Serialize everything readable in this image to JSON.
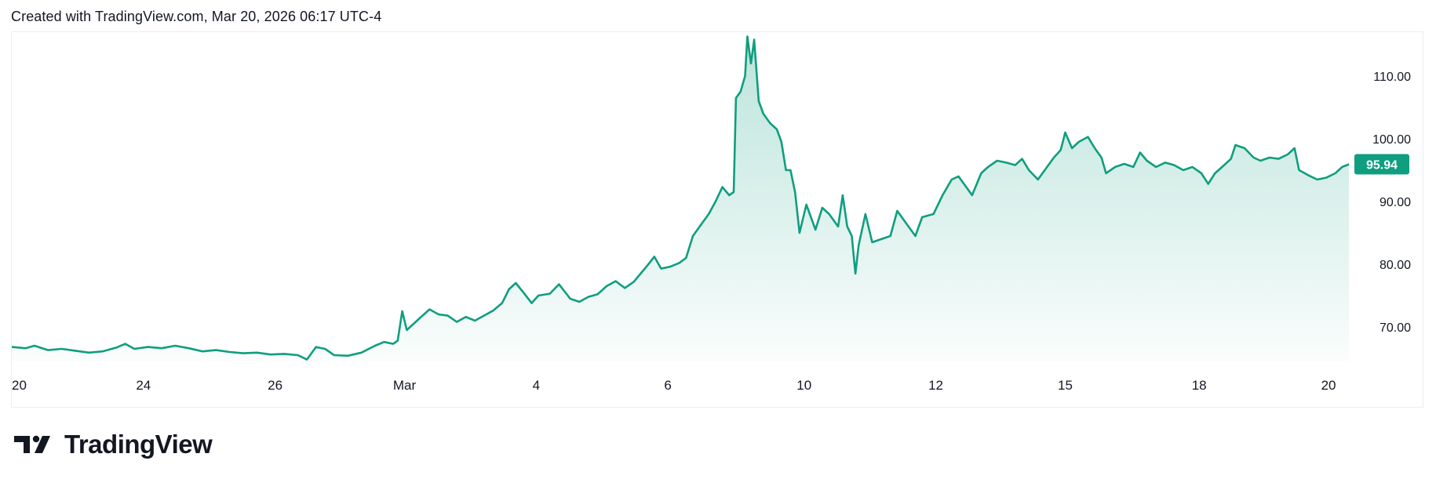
{
  "header": {
    "created_text": "Created with TradingView.com, Mar 20, 2026 06:17 UTC-4"
  },
  "brand": {
    "name": "TradingView",
    "logo_icon": "tradingview-logo-icon"
  },
  "colors": {
    "line": "#0f9e7f",
    "area_top": "#0f9e7f",
    "price_badge_bg": "#0f9e7f",
    "axis_text": "#131722"
  },
  "chart_data": {
    "type": "area",
    "title": "",
    "xlabel": "",
    "ylabel": "",
    "ylim": [
      64.5,
      117
    ],
    "xlim": [
      0,
      29.5
    ],
    "y_ticks": [
      "110.00",
      "100.00",
      "90.00",
      "80.00",
      "70.00"
    ],
    "y_tick_values": [
      110,
      100,
      90,
      80,
      70
    ],
    "x_ticks": [
      {
        "label": "20",
        "x": 0
      },
      {
        "label": "24",
        "x": 2.9
      },
      {
        "label": "26",
        "x": 5.8
      },
      {
        "label": "Mar",
        "x": 8.65
      },
      {
        "label": "4",
        "x": 11.55
      },
      {
        "label": "6",
        "x": 14.45
      },
      {
        "label": "10",
        "x": 17.45
      },
      {
        "label": "12",
        "x": 20.35
      },
      {
        "label": "15",
        "x": 23.2
      },
      {
        "label": "18",
        "x": 26.15
      },
      {
        "label": "20",
        "x": 29.0
      }
    ],
    "last_price_label": "95.94",
    "last_value": 95.94,
    "grid": false,
    "series": [
      {
        "values": [
          [
            0,
            66.8
          ],
          [
            0.3,
            66.6
          ],
          [
            0.5,
            67.0
          ],
          [
            0.8,
            66.3
          ],
          [
            1.1,
            66.5
          ],
          [
            1.4,
            66.2
          ],
          [
            1.7,
            65.9
          ],
          [
            2.0,
            66.1
          ],
          [
            2.3,
            66.7
          ],
          [
            2.5,
            67.3
          ],
          [
            2.7,
            66.5
          ],
          [
            3.0,
            66.8
          ],
          [
            3.3,
            66.6
          ],
          [
            3.6,
            67.0
          ],
          [
            3.9,
            66.6
          ],
          [
            4.2,
            66.1
          ],
          [
            4.5,
            66.3
          ],
          [
            4.8,
            66.0
          ],
          [
            5.1,
            65.8
          ],
          [
            5.4,
            65.9
          ],
          [
            5.7,
            65.6
          ],
          [
            6.0,
            65.7
          ],
          [
            6.3,
            65.5
          ],
          [
            6.5,
            64.8
          ],
          [
            6.7,
            66.8
          ],
          [
            6.9,
            66.5
          ],
          [
            7.1,
            65.5
          ],
          [
            7.4,
            65.4
          ],
          [
            7.7,
            65.9
          ],
          [
            8.0,
            67.0
          ],
          [
            8.2,
            67.6
          ],
          [
            8.4,
            67.3
          ],
          [
            8.5,
            67.8
          ],
          [
            8.6,
            72.5
          ],
          [
            8.7,
            69.5
          ],
          [
            8.85,
            70.5
          ],
          [
            9.0,
            71.5
          ],
          [
            9.2,
            72.8
          ],
          [
            9.4,
            72.0
          ],
          [
            9.6,
            71.8
          ],
          [
            9.8,
            70.8
          ],
          [
            10.0,
            71.6
          ],
          [
            10.2,
            71.0
          ],
          [
            10.4,
            71.8
          ],
          [
            10.6,
            72.6
          ],
          [
            10.8,
            73.8
          ],
          [
            10.95,
            76.0
          ],
          [
            11.1,
            77.0
          ],
          [
            11.3,
            75.2
          ],
          [
            11.45,
            73.8
          ],
          [
            11.6,
            75.0
          ],
          [
            11.85,
            75.3
          ],
          [
            12.05,
            76.8
          ],
          [
            12.3,
            74.5
          ],
          [
            12.5,
            74.0
          ],
          [
            12.7,
            74.8
          ],
          [
            12.9,
            75.2
          ],
          [
            13.1,
            76.5
          ],
          [
            13.3,
            77.3
          ],
          [
            13.5,
            76.2
          ],
          [
            13.7,
            77.2
          ],
          [
            13.85,
            78.5
          ],
          [
            14.0,
            79.8
          ],
          [
            14.15,
            81.2
          ],
          [
            14.3,
            79.3
          ],
          [
            14.5,
            79.6
          ],
          [
            14.7,
            80.2
          ],
          [
            14.85,
            81.0
          ],
          [
            15.0,
            84.5
          ],
          [
            15.2,
            86.5
          ],
          [
            15.35,
            88.0
          ],
          [
            15.5,
            90.0
          ],
          [
            15.65,
            92.3
          ],
          [
            15.8,
            91.0
          ],
          [
            15.9,
            91.5
          ],
          [
            15.95,
            106.5
          ],
          [
            16.05,
            107.5
          ],
          [
            16.15,
            110.0
          ],
          [
            16.2,
            116.3
          ],
          [
            16.28,
            112.0
          ],
          [
            16.35,
            115.8
          ],
          [
            16.45,
            106.0
          ],
          [
            16.55,
            104.0
          ],
          [
            16.7,
            102.5
          ],
          [
            16.85,
            101.5
          ],
          [
            16.95,
            99.5
          ],
          [
            17.05,
            95.0
          ],
          [
            17.15,
            95.0
          ],
          [
            17.25,
            91.5
          ],
          [
            17.35,
            85.0
          ],
          [
            17.5,
            89.5
          ],
          [
            17.7,
            85.5
          ],
          [
            17.85,
            89.0
          ],
          [
            18.0,
            88.0
          ],
          [
            18.2,
            86.0
          ],
          [
            18.3,
            91.0
          ],
          [
            18.4,
            86.0
          ],
          [
            18.5,
            84.5
          ],
          [
            18.58,
            78.5
          ],
          [
            18.65,
            83.0
          ],
          [
            18.8,
            88.0
          ],
          [
            18.95,
            83.5
          ],
          [
            19.15,
            84.0
          ],
          [
            19.35,
            84.5
          ],
          [
            19.5,
            88.5
          ],
          [
            19.7,
            86.5
          ],
          [
            19.9,
            84.5
          ],
          [
            20.05,
            87.5
          ],
          [
            20.3,
            88.0
          ],
          [
            20.5,
            91.0
          ],
          [
            20.7,
            93.5
          ],
          [
            20.85,
            94.0
          ],
          [
            21.0,
            92.5
          ],
          [
            21.15,
            91.0
          ],
          [
            21.35,
            94.5
          ],
          [
            21.5,
            95.5
          ],
          [
            21.7,
            96.5
          ],
          [
            21.9,
            96.2
          ],
          [
            22.1,
            95.8
          ],
          [
            22.25,
            96.8
          ],
          [
            22.4,
            95.0
          ],
          [
            22.6,
            93.5
          ],
          [
            22.8,
            95.5
          ],
          [
            22.95,
            97.0
          ],
          [
            23.1,
            98.2
          ],
          [
            23.2,
            101.0
          ],
          [
            23.35,
            98.5
          ],
          [
            23.5,
            99.5
          ],
          [
            23.7,
            100.3
          ],
          [
            23.85,
            98.5
          ],
          [
            24.0,
            97.0
          ],
          [
            24.1,
            94.5
          ],
          [
            24.3,
            95.5
          ],
          [
            24.5,
            96.0
          ],
          [
            24.7,
            95.5
          ],
          [
            24.85,
            97.8
          ],
          [
            25.0,
            96.5
          ],
          [
            25.2,
            95.5
          ],
          [
            25.4,
            96.2
          ],
          [
            25.6,
            95.8
          ],
          [
            25.8,
            95.0
          ],
          [
            26.0,
            95.5
          ],
          [
            26.2,
            94.5
          ],
          [
            26.35,
            92.8
          ],
          [
            26.5,
            94.5
          ],
          [
            26.7,
            95.8
          ],
          [
            26.85,
            96.8
          ],
          [
            26.95,
            99.0
          ],
          [
            27.15,
            98.5
          ],
          [
            27.35,
            97.0
          ],
          [
            27.5,
            96.5
          ],
          [
            27.7,
            97.0
          ],
          [
            27.9,
            96.8
          ],
          [
            28.1,
            97.5
          ],
          [
            28.25,
            98.5
          ],
          [
            28.35,
            95.0
          ],
          [
            28.55,
            94.2
          ],
          [
            28.75,
            93.5
          ],
          [
            28.95,
            93.8
          ],
          [
            29.15,
            94.5
          ],
          [
            29.3,
            95.5
          ],
          [
            29.45,
            95.94
          ]
        ]
      }
    ]
  }
}
